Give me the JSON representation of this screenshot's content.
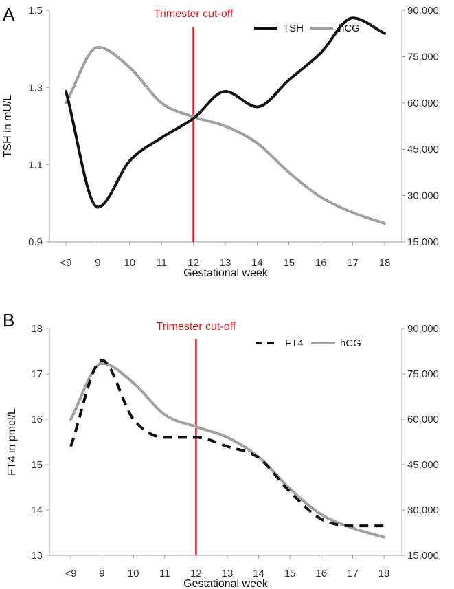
{
  "colors": {
    "tsh": "#111111",
    "ft4": "#111111",
    "hcg": "#a0a0a0",
    "cutoff": "#e8121b",
    "axis": "#999999"
  },
  "chart_data": [
    {
      "panel": "A",
      "type": "line",
      "categories": [
        "<9",
        "9",
        "10",
        "11",
        "12",
        "13",
        "14",
        "15",
        "16",
        "17",
        "18"
      ],
      "xlabel": "Gestational week",
      "ylabel": "TSH in mU/L",
      "ylim": [
        0.9,
        1.5
      ],
      "yticks": [
        "0.9",
        "1.1",
        "1.3",
        "1.5"
      ],
      "y2lim": [
        15000,
        90000
      ],
      "y2ticks": [
        "15,000",
        "30,000",
        "45,000",
        "60,000",
        "75,000",
        "90,000"
      ],
      "annotation": {
        "label": "Trimester cut-off",
        "category": "12"
      },
      "legend": "top-right",
      "series": [
        {
          "name": "TSH",
          "axis": "left",
          "style": "solid",
          "values": [
            1.29,
            0.99,
            1.11,
            1.17,
            1.22,
            1.29,
            1.25,
            1.32,
            1.39,
            1.48,
            1.44
          ]
        },
        {
          "name": "hCG",
          "axis": "right",
          "style": "solid",
          "values": [
            60000,
            78000,
            71500,
            60000,
            55500,
            52500,
            47000,
            37500,
            29500,
            24500,
            21000
          ]
        }
      ]
    },
    {
      "panel": "B",
      "type": "line",
      "categories": [
        "<9",
        "9",
        "10",
        "11",
        "12",
        "13",
        "14",
        "15",
        "16",
        "17",
        "18"
      ],
      "xlabel": "Gestational week",
      "ylabel": "FT4 in pmol/L",
      "ylim": [
        13,
        18
      ],
      "yticks": [
        "13",
        "14",
        "15",
        "16",
        "17",
        "18"
      ],
      "y2lim": [
        15000,
        90000
      ],
      "y2ticks": [
        "15,000",
        "30,000",
        "45,000",
        "60,000",
        "75,000",
        "90,000"
      ],
      "annotation": {
        "label": "Trimester cut-off",
        "category": "12"
      },
      "legend": "top-right",
      "series": [
        {
          "name": "FT4",
          "axis": "left",
          "style": "dashed",
          "values": [
            15.4,
            17.3,
            16.0,
            15.6,
            15.6,
            15.4,
            15.15,
            14.4,
            13.8,
            13.65,
            13.65
          ]
        },
        {
          "name": "hCG",
          "axis": "right",
          "style": "solid",
          "values": [
            60000,
            78500,
            72000,
            61500,
            57500,
            54000,
            47500,
            37000,
            28500,
            24000,
            21000
          ]
        }
      ]
    }
  ]
}
